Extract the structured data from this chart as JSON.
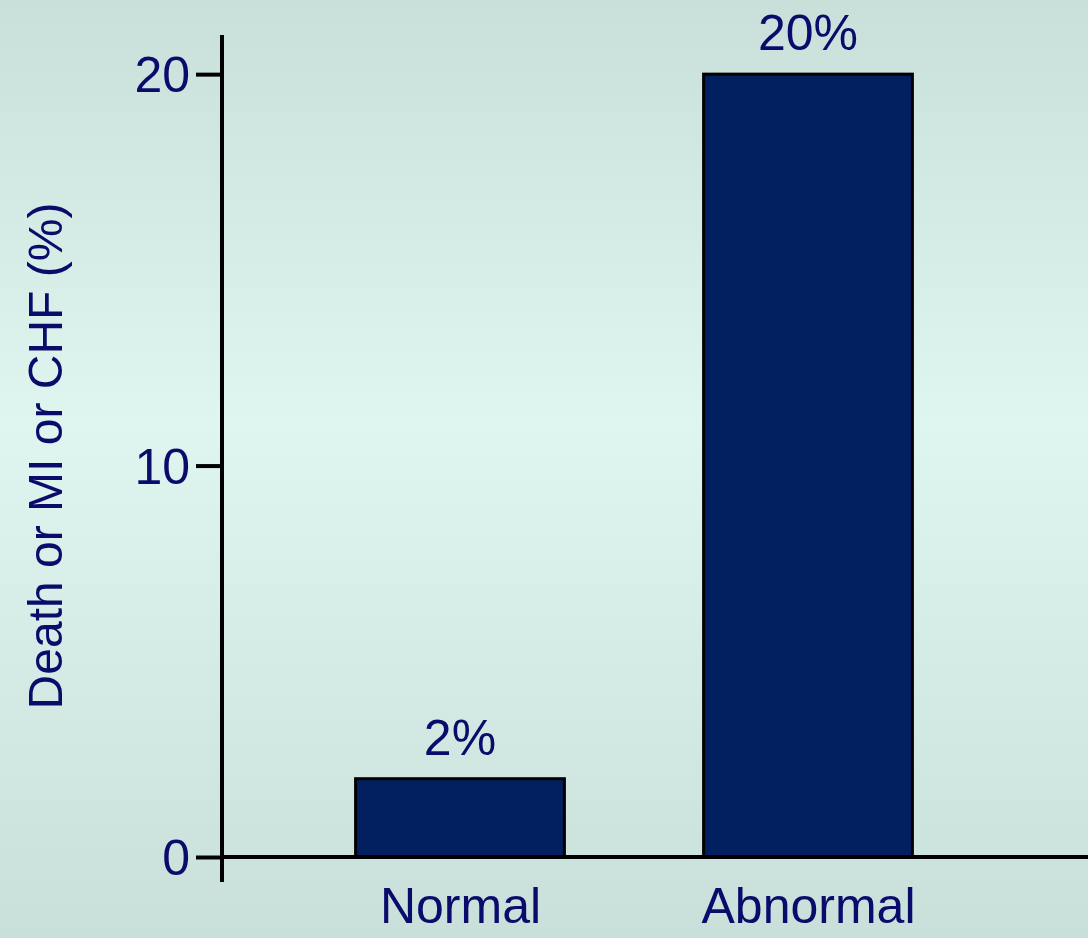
{
  "chart_data": {
    "type": "bar",
    "ylabel": "Death or MI or CHF (%)",
    "categories": [
      "Normal",
      "Abnormal"
    ],
    "values": [
      2,
      20
    ],
    "color": "#022060",
    "value_labels": [
      "2%",
      "20%"
    ],
    "ylim": [
      0,
      21
    ],
    "yticks": [
      0,
      10,
      20
    ],
    "grid": false
  }
}
